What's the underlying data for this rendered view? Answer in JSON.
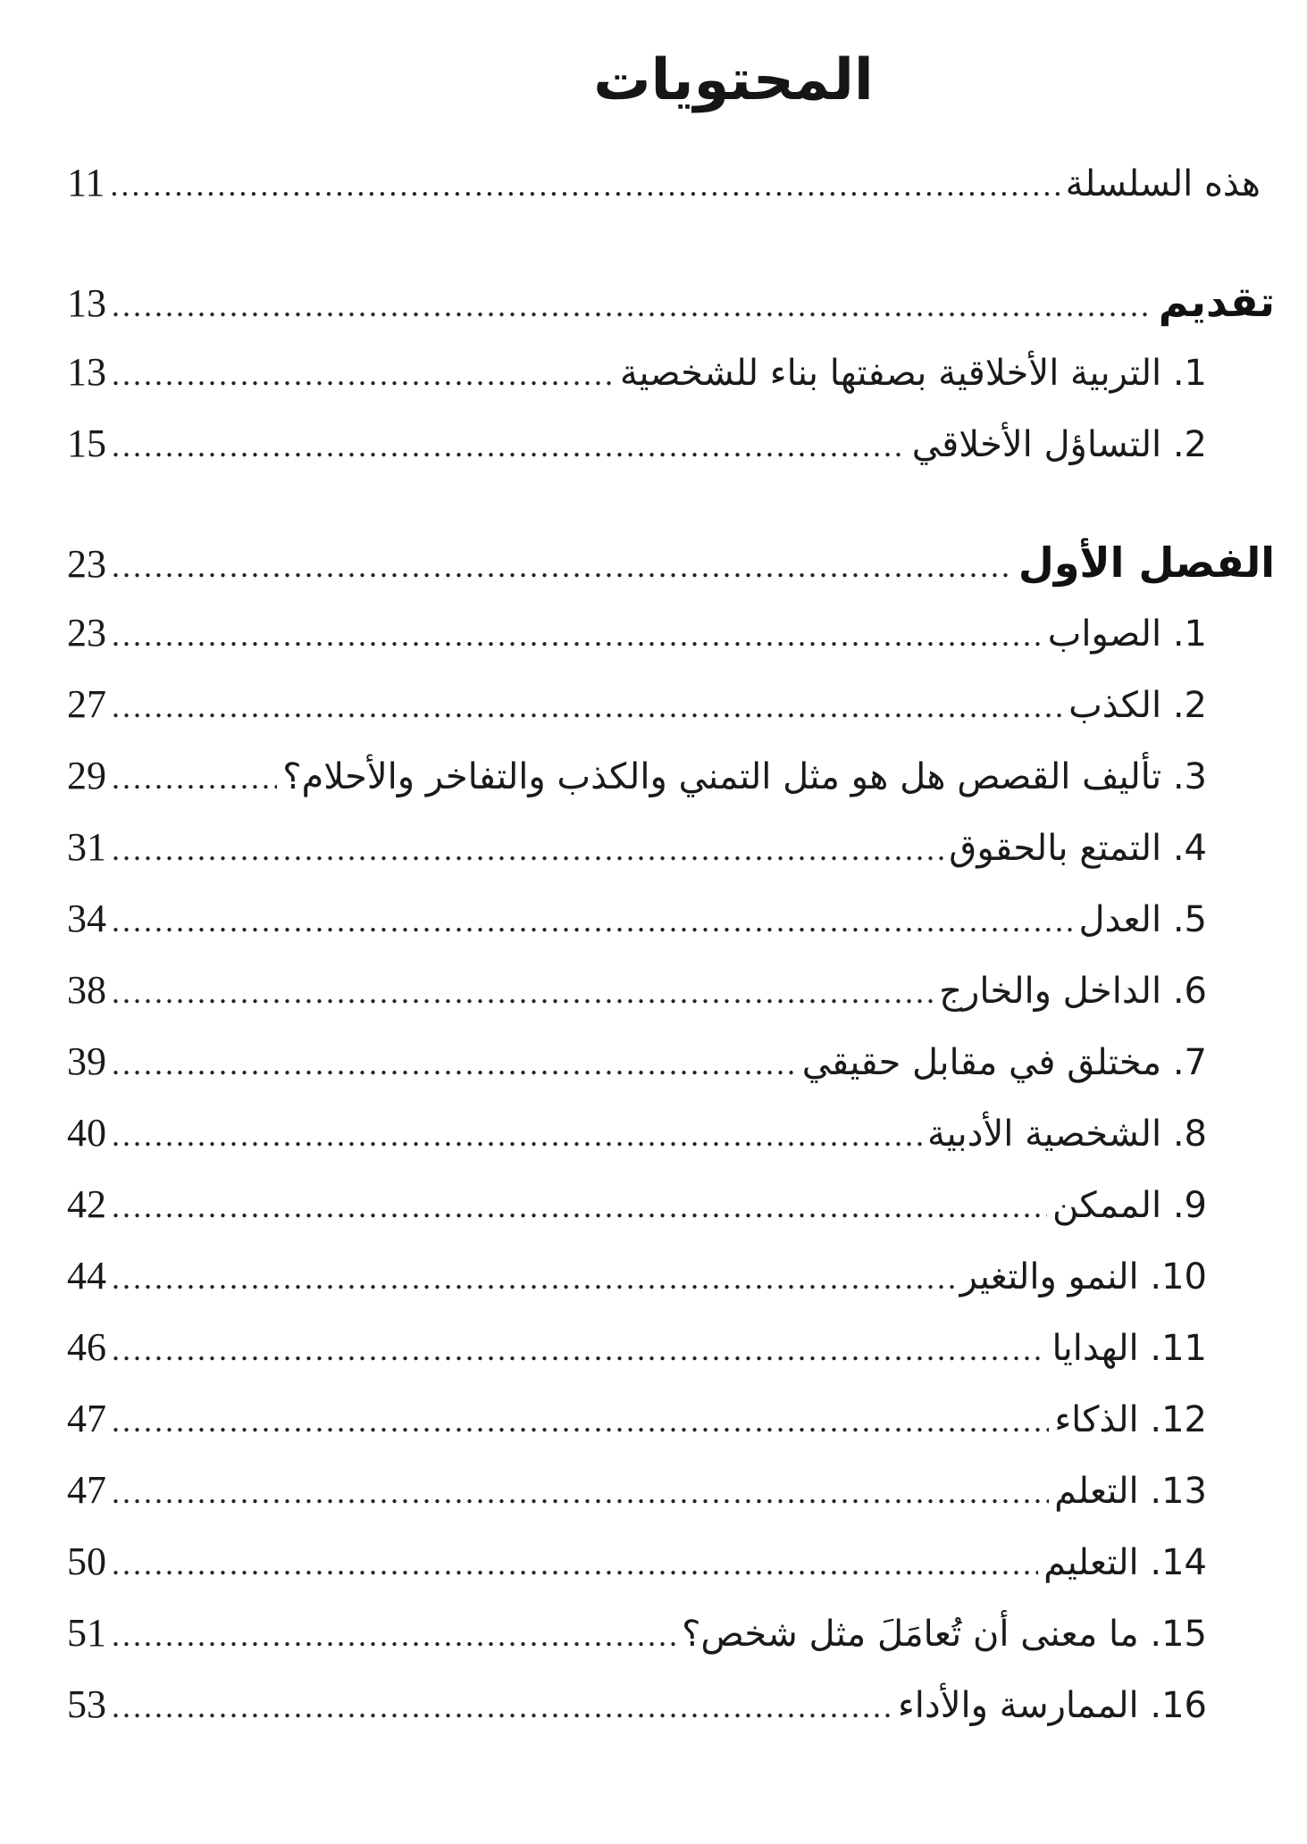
{
  "document": {
    "title": "المحتويات",
    "colors": {
      "ink": "#1a1a1a",
      "paper": "#ffffff"
    },
    "entries": [
      {
        "label": "هذه السلسلة",
        "page": "11",
        "style": "plain"
      },
      {
        "label": "تقديم",
        "page": "13",
        "style": "heading"
      },
      {
        "label": "1. التربية الأخلاقية بصفتها بناء للشخصية",
        "page": "13",
        "style": "numbered"
      },
      {
        "label": "2. التساؤل الأخلاقي",
        "page": "15",
        "style": "numbered"
      },
      {
        "label": "الفصل الأول",
        "page": "23",
        "style": "heading"
      },
      {
        "label": "1. الصواب",
        "page": "23",
        "style": "numbered"
      },
      {
        "label": "2. الكذب",
        "page": "27",
        "style": "numbered"
      },
      {
        "label": "3. تأليف القصص هل هو مثل التمني والكذب والتفاخر والأحلام؟",
        "page": "29",
        "style": "numbered"
      },
      {
        "label": "4. التمتع بالحقوق",
        "page": "31",
        "style": "numbered"
      },
      {
        "label": "5. العدل",
        "page": "34",
        "style": "numbered"
      },
      {
        "label": "6. الداخل والخارج",
        "page": "38",
        "style": "numbered"
      },
      {
        "label": "7. مختلق في مقابل حقيقي",
        "page": "39",
        "style": "numbered"
      },
      {
        "label": "8. الشخصية الأدبية",
        "page": "40",
        "style": "numbered"
      },
      {
        "label": "9. الممكن",
        "page": "42",
        "style": "numbered"
      },
      {
        "label": "10. النمو والتغير",
        "page": "44",
        "style": "numbered"
      },
      {
        "label": "11. الهدايا",
        "page": "46",
        "style": "numbered"
      },
      {
        "label": "12. الذكاء",
        "page": "47",
        "style": "numbered"
      },
      {
        "label": "13. التعلم",
        "page": "47",
        "style": "numbered"
      },
      {
        "label": "14. التعليم",
        "page": "50",
        "style": "numbered"
      },
      {
        "label": "15. ما معنى أن تُعامَلَ مثل شخص؟",
        "page": "51",
        "style": "numbered"
      },
      {
        "label": "16. الممارسة والأداء",
        "page": "53",
        "style": "numbered"
      }
    ]
  }
}
